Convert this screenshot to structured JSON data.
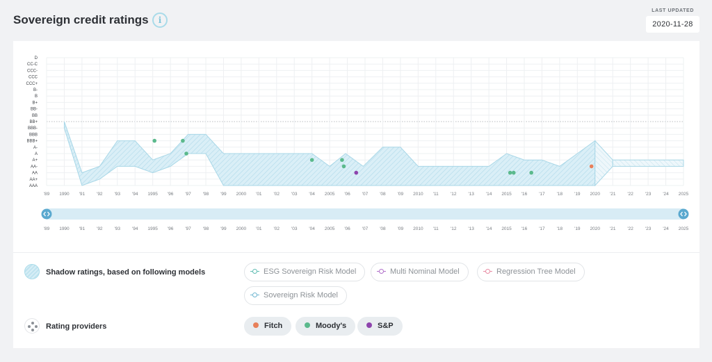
{
  "header": {
    "title": "Sovereign credit ratings",
    "last_updated_label": "LAST UPDATED",
    "last_updated_value": "2020-11-28"
  },
  "colors": {
    "band_fill": "#d6edf6",
    "band_stroke": "#a8d7e7",
    "fitch": "#e8805a",
    "moodys": "#5bb98c",
    "sp": "#8e44ad",
    "threshold_line": "#b9bcc0"
  },
  "chart_data": {
    "type": "area",
    "y_categories": [
      "AAA",
      "AA+",
      "AA",
      "AA-",
      "A+",
      "A",
      "A-",
      "BBB+",
      "BBB",
      "BBB-",
      "BB+",
      "BB",
      "BB-",
      "B+",
      "B",
      "B-",
      "CCC+",
      "CCC",
      "CCC-",
      "CC-C",
      "D"
    ],
    "y_axis_top_to_bottom": [
      "D",
      "CC-C",
      "CCC-",
      "CCC",
      "CCC+",
      "B-",
      "B",
      "B+",
      "BB-",
      "BB",
      "BB+",
      "BBB-",
      "BBB",
      "BBB+",
      "A-",
      "A",
      "A+",
      "AA-",
      "AA",
      "AA+",
      "AAA"
    ],
    "x_range": [
      1989,
      2025
    ],
    "x_tick_labels": [
      "'89",
      "1990",
      "'91",
      "'92",
      "'93",
      "'94",
      "1995",
      "'96",
      "'97",
      "'98",
      "'99",
      "2000",
      "'01",
      "'02",
      "'03",
      "'04",
      "2005",
      "'06",
      "'07",
      "'08",
      "'09",
      "2010",
      "'11",
      "'12",
      "'13",
      "'14",
      "2015",
      "'16",
      "'17",
      "'18",
      "'19",
      "2020",
      "'21",
      "'22",
      "'23",
      "'24",
      "2025"
    ],
    "threshold_level": "BB+",
    "grid": true,
    "shadow_band": {
      "x": [
        1990,
        1991,
        1992,
        1993,
        1994,
        1995,
        1996,
        1997,
        1998,
        1999,
        2000,
        2001,
        2002,
        2003,
        2004,
        2005,
        2005.9,
        2006.9,
        2008,
        2009,
        2010,
        2011,
        2012,
        2013,
        2014,
        2015,
        2016,
        2017,
        2018,
        2019,
        2020
      ],
      "upper": [
        "BB+",
        "AA",
        "AA-",
        "BBB+",
        "BBB+",
        "A+",
        "A",
        "BBB",
        "BBB",
        "A",
        "A",
        "A",
        "A",
        "A",
        "A",
        "AA-",
        "A",
        "AA-",
        "A-",
        "A-",
        "AA-",
        "AA-",
        "AA-",
        "AA-",
        "AA-",
        "A",
        "A+",
        "A+",
        "AA-",
        "A",
        "BBB+"
      ],
      "lower": [
        "BBB-",
        "AAA",
        "AA+",
        "AA-",
        "AA-",
        "AA",
        "AA-",
        "A",
        "A",
        "AAA",
        "AAA",
        "AAA",
        "AAA",
        "AAA",
        "AAA",
        "AAA",
        "AAA",
        "AAA",
        "AAA",
        "AAA",
        "AAA",
        "AAA",
        "AAA",
        "AAA",
        "AAA",
        "AAA",
        "AAA",
        "AAA",
        "AAA",
        "AAA",
        "AAA"
      ]
    },
    "forecast_band": {
      "x_start": 2021,
      "x_end": 2025,
      "upper": "A+",
      "lower": "AA-"
    },
    "ratings": [
      {
        "provider": "Moody's",
        "x": 1995.1,
        "rating": "BBB+"
      },
      {
        "provider": "Moody's",
        "x": 1996.7,
        "rating": "BBB+"
      },
      {
        "provider": "Moody's",
        "x": 1996.9,
        "rating": "A"
      },
      {
        "provider": "Moody's",
        "x": 2004.0,
        "rating": "A+"
      },
      {
        "provider": "Moody's",
        "x": 2005.7,
        "rating": "A+"
      },
      {
        "provider": "Moody's",
        "x": 2005.8,
        "rating": "AA-"
      },
      {
        "provider": "S&P",
        "x": 2006.5,
        "rating": "AA"
      },
      {
        "provider": "Moody's",
        "x": 2015.2,
        "rating": "AA"
      },
      {
        "provider": "Moody's",
        "x": 2015.4,
        "rating": "AA"
      },
      {
        "provider": "Moody's",
        "x": 2016.4,
        "rating": "AA"
      },
      {
        "provider": "Fitch",
        "x": 2019.8,
        "rating": "AA-"
      }
    ],
    "navigator_range": [
      1989,
      2025
    ]
  },
  "legend": {
    "shadow_title": "Shadow ratings, based on following models",
    "models": [
      {
        "label": "ESG Sovereign Risk Model",
        "color": "#5fbcb2"
      },
      {
        "label": "Multi Nominal Model",
        "color": "#b06fc9"
      },
      {
        "label": "Regression Tree Model",
        "color": "#e88aa2"
      },
      {
        "label": "Sovereign Risk Model",
        "color": "#6fb6d1"
      }
    ],
    "providers_title": "Rating providers",
    "providers": [
      {
        "label": "Fitch",
        "color": "#e8805a"
      },
      {
        "label": "Moody's",
        "color": "#5bb98c"
      },
      {
        "label": "S&P",
        "color": "#8e44ad"
      }
    ]
  }
}
